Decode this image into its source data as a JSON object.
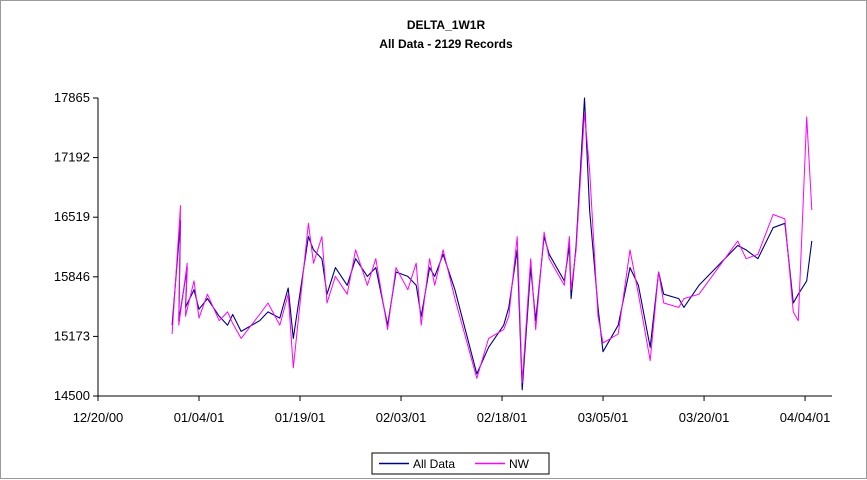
{
  "chart_data": {
    "type": "line",
    "title": "DELTA_1W1R",
    "subtitle": "All Data - 2129 Records",
    "xlabel": "",
    "ylabel": "",
    "x_tick_labels": [
      "12/20/00",
      "01/04/01",
      "01/19/01",
      "02/03/01",
      "02/18/01",
      "03/05/01",
      "03/20/01",
      "04/04/01"
    ],
    "y_tick_labels": [
      "14500",
      "15173",
      "15846",
      "16519",
      "17192",
      "17865"
    ],
    "xlim": [
      "2000-12-20",
      "2001-04-08"
    ],
    "ylim": [
      14500,
      17865
    ],
    "grid": false,
    "legend_position": "bottom-center",
    "series": [
      {
        "name": "All Data",
        "color": "#000080",
        "points": [
          [
            "2000-12-31",
            15300
          ],
          [
            "2001-01-01",
            16480
          ],
          [
            "2001-01-01",
            15350
          ],
          [
            "2001-01-02",
            15950
          ],
          [
            "2001-01-02",
            15500
          ],
          [
            "2001-01-03",
            15700
          ],
          [
            "2001-01-04",
            15480
          ],
          [
            "2001-01-05",
            15600
          ],
          [
            "2001-01-07",
            15400
          ],
          [
            "2001-01-08",
            15300
          ],
          [
            "2001-01-09",
            15420
          ],
          [
            "2001-01-10",
            15230
          ],
          [
            "2001-01-13",
            15350
          ],
          [
            "2001-01-14",
            15450
          ],
          [
            "2001-01-16",
            15380
          ],
          [
            "2001-01-17",
            15720
          ],
          [
            "2001-01-18",
            15150
          ],
          [
            "2001-01-20",
            16300
          ],
          [
            "2001-01-21",
            16150
          ],
          [
            "2001-01-22",
            16050
          ],
          [
            "2001-01-23",
            15650
          ],
          [
            "2001-01-24",
            15950
          ],
          [
            "2001-01-26",
            15750
          ],
          [
            "2001-01-27",
            16050
          ],
          [
            "2001-01-29",
            15850
          ],
          [
            "2001-01-30",
            15950
          ],
          [
            "2001-02-01",
            15300
          ],
          [
            "2001-02-02",
            15900
          ],
          [
            "2001-02-04",
            15850
          ],
          [
            "2001-02-05",
            15750
          ],
          [
            "2001-02-06",
            15400
          ],
          [
            "2001-02-07",
            15950
          ],
          [
            "2001-02-08",
            15850
          ],
          [
            "2001-02-09",
            16100
          ],
          [
            "2001-02-11",
            15700
          ],
          [
            "2001-02-14",
            14750
          ],
          [
            "2001-02-16",
            15050
          ],
          [
            "2001-02-18",
            15300
          ],
          [
            "2001-02-19",
            15500
          ],
          [
            "2001-02-20",
            16150
          ],
          [
            "2001-02-21",
            14570
          ],
          [
            "2001-02-22",
            15950
          ],
          [
            "2001-02-23",
            15350
          ],
          [
            "2001-02-24",
            16300
          ],
          [
            "2001-02-25",
            16100
          ],
          [
            "2001-02-27",
            15800
          ],
          [
            "2001-02-28",
            16200
          ],
          [
            "2001-02-28",
            15600
          ],
          [
            "2001-03-01",
            16200
          ],
          [
            "2001-03-02",
            17865
          ],
          [
            "2001-03-03",
            16600
          ],
          [
            "2001-03-04",
            15500
          ],
          [
            "2001-03-05",
            15000
          ],
          [
            "2001-03-07",
            15300
          ],
          [
            "2001-03-09",
            15950
          ],
          [
            "2001-03-10",
            15750
          ],
          [
            "2001-03-12",
            15050
          ],
          [
            "2001-03-13",
            15900
          ],
          [
            "2001-03-14",
            15650
          ],
          [
            "2001-03-16",
            15600
          ],
          [
            "2001-03-17",
            15500
          ],
          [
            "2001-03-19",
            15750
          ],
          [
            "2001-03-25",
            16200
          ],
          [
            "2001-03-26",
            16150
          ],
          [
            "2001-03-28",
            16050
          ],
          [
            "2001-03-30",
            16400
          ],
          [
            "2001-04-01",
            16450
          ],
          [
            "2001-04-02",
            15550
          ],
          [
            "2001-04-03",
            15650
          ],
          [
            "2001-04-04",
            15800
          ],
          [
            "2001-04-05",
            16250
          ]
        ]
      },
      {
        "name": "NW",
        "color": "#ff00ff",
        "points": [
          [
            "2000-12-31",
            15200
          ],
          [
            "2001-01-01",
            16650
          ],
          [
            "2001-01-01",
            15300
          ],
          [
            "2001-01-02",
            16000
          ],
          [
            "2001-01-02",
            15400
          ],
          [
            "2001-01-03",
            15800
          ],
          [
            "2001-01-04",
            15380
          ],
          [
            "2001-01-05",
            15650
          ],
          [
            "2001-01-07",
            15350
          ],
          [
            "2001-01-08",
            15450
          ],
          [
            "2001-01-09",
            15320
          ],
          [
            "2001-01-10",
            15150
          ],
          [
            "2001-01-13",
            15420
          ],
          [
            "2001-01-14",
            15550
          ],
          [
            "2001-01-16",
            15300
          ],
          [
            "2001-01-17",
            15650
          ],
          [
            "2001-01-18",
            14820
          ],
          [
            "2001-01-20",
            16450
          ],
          [
            "2001-01-21",
            16000
          ],
          [
            "2001-01-22",
            16300
          ],
          [
            "2001-01-23",
            15550
          ],
          [
            "2001-01-24",
            15850
          ],
          [
            "2001-01-26",
            15650
          ],
          [
            "2001-01-27",
            16150
          ],
          [
            "2001-01-29",
            15750
          ],
          [
            "2001-01-30",
            16050
          ],
          [
            "2001-02-01",
            15250
          ],
          [
            "2001-02-02",
            15950
          ],
          [
            "2001-02-04",
            15700
          ],
          [
            "2001-02-05",
            16000
          ],
          [
            "2001-02-06",
            15300
          ],
          [
            "2001-02-07",
            16050
          ],
          [
            "2001-02-08",
            15750
          ],
          [
            "2001-02-09",
            16150
          ],
          [
            "2001-02-11",
            15600
          ],
          [
            "2001-02-14",
            14700
          ],
          [
            "2001-02-16",
            15150
          ],
          [
            "2001-02-18",
            15250
          ],
          [
            "2001-02-19",
            15400
          ],
          [
            "2001-02-20",
            16300
          ],
          [
            "2001-02-21",
            14650
          ],
          [
            "2001-02-22",
            16050
          ],
          [
            "2001-02-23",
            15250
          ],
          [
            "2001-02-24",
            16350
          ],
          [
            "2001-02-25",
            16050
          ],
          [
            "2001-02-27",
            15750
          ],
          [
            "2001-02-28",
            16300
          ],
          [
            "2001-02-28",
            15700
          ],
          [
            "2001-03-01",
            16150
          ],
          [
            "2001-03-02",
            17700
          ],
          [
            "2001-03-03",
            17050
          ],
          [
            "2001-03-04",
            15400
          ],
          [
            "2001-03-05",
            15100
          ],
          [
            "2001-03-07",
            15200
          ],
          [
            "2001-03-09",
            16150
          ],
          [
            "2001-03-10",
            15650
          ],
          [
            "2001-03-12",
            14900
          ],
          [
            "2001-03-13",
            15900
          ],
          [
            "2001-03-14",
            15550
          ],
          [
            "2001-03-16",
            15500
          ],
          [
            "2001-03-17",
            15600
          ],
          [
            "2001-03-19",
            15650
          ],
          [
            "2001-03-25",
            16250
          ],
          [
            "2001-03-26",
            16050
          ],
          [
            "2001-03-28",
            16100
          ],
          [
            "2001-03-30",
            16550
          ],
          [
            "2001-04-01",
            16500
          ],
          [
            "2001-04-02",
            15450
          ],
          [
            "2001-04-03",
            15350
          ],
          [
            "2001-04-04",
            17650
          ],
          [
            "2001-04-05",
            16600
          ]
        ]
      }
    ]
  }
}
